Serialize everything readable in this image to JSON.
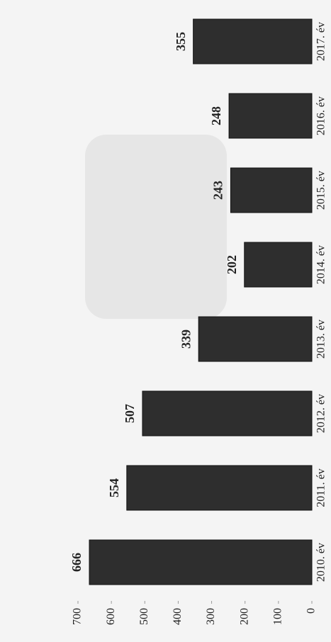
{
  "chart_data": {
    "type": "bar",
    "categories": [
      "2010. év",
      "2011. év",
      "2012. év",
      "2013. év",
      "2014. év",
      "2015. év",
      "2016. év",
      "2017. év"
    ],
    "values": [
      666,
      554,
      507,
      339,
      202,
      243,
      248,
      355
    ],
    "color": "#2e2e2e",
    "ylim": [
      0,
      700
    ],
    "yticks": [
      0,
      100,
      200,
      300,
      400,
      500,
      600,
      700
    ]
  }
}
